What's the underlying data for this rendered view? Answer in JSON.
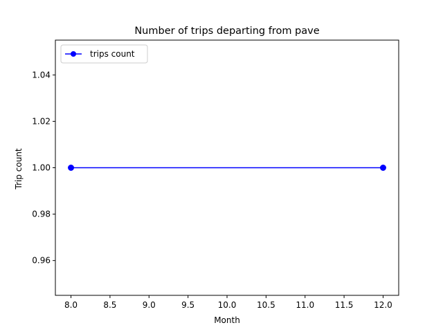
{
  "chart_data": {
    "type": "line",
    "title": "Number of trips departing from pave",
    "xlabel": "Month",
    "ylabel": "Trip count",
    "xlim": [
      7.8,
      12.2
    ],
    "ylim": [
      0.945,
      1.055
    ],
    "xticks": [
      8.0,
      8.5,
      9.0,
      9.5,
      10.0,
      10.5,
      11.0,
      11.5,
      12.0
    ],
    "xtick_labels": [
      "8.0",
      "8.5",
      "9.0",
      "9.5",
      "10.0",
      "10.5",
      "11.0",
      "11.5",
      "12.0"
    ],
    "yticks": [
      0.96,
      0.98,
      1.0,
      1.02,
      1.04
    ],
    "ytick_labels": [
      "0.96",
      "0.98",
      "1.00",
      "1.02",
      "1.04"
    ],
    "grid": false,
    "legend_position": "upper left",
    "series": [
      {
        "name": "trips count",
        "color": "#0000ff",
        "marker": "circle",
        "x": [
          8,
          12
        ],
        "y": [
          1,
          1
        ]
      }
    ]
  }
}
